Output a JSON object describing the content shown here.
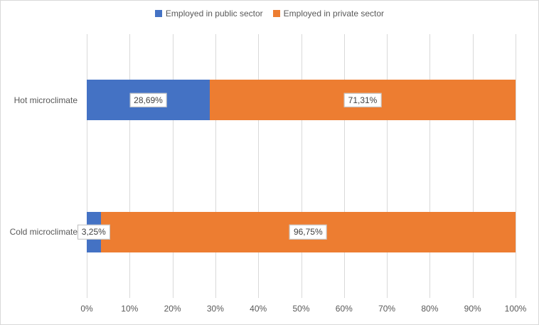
{
  "chart_data": {
    "type": "bar",
    "orientation": "horizontal",
    "stacked": true,
    "percent_stacked": true,
    "title": "",
    "categories": [
      "Hot microclimate",
      "Cold microclimate"
    ],
    "series": [
      {
        "name": "Employed in public sector",
        "color": "#4472c4",
        "values": [
          28.69,
          3.25
        ],
        "data_labels": [
          "28,69%",
          "3,25%"
        ]
      },
      {
        "name": "Employed in private sector",
        "color": "#ed7d31",
        "values": [
          71.31,
          96.75
        ],
        "data_labels": [
          "71,31%",
          "96,75%"
        ]
      }
    ],
    "x_axis": {
      "min": 0,
      "max": 100,
      "tick_labels": [
        "0%",
        "10%",
        "20%",
        "30%",
        "40%",
        "50%",
        "60%",
        "70%",
        "80%",
        "90%",
        "100%"
      ]
    },
    "legend_position": "top",
    "grid": true,
    "colors": {
      "gridline": "#d9d9d9",
      "axis_text": "#595959",
      "label_text": "#404040",
      "label_border": "#bfbfbf",
      "chart_border": "#d9d9d9"
    }
  }
}
